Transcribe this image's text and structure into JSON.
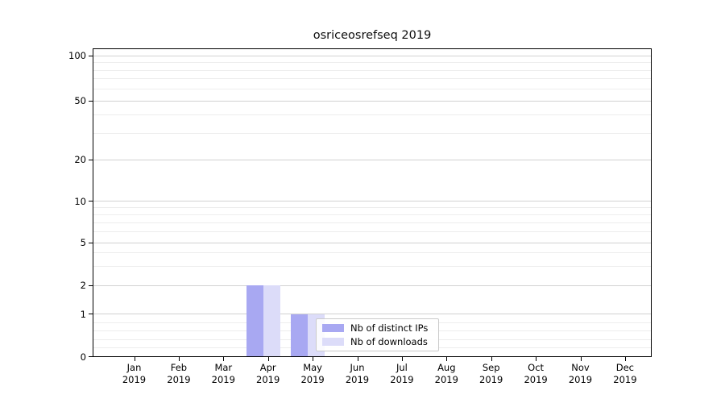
{
  "chart_data": {
    "type": "bar",
    "title": "osriceosrefseq 2019",
    "categories": [
      "Jan",
      "Feb",
      "Mar",
      "Apr",
      "May",
      "Jun",
      "Jul",
      "Aug",
      "Sep",
      "Oct",
      "Nov",
      "Dec"
    ],
    "x_year": "2019",
    "series": [
      {
        "name": "Nb of distinct IPs",
        "color": "#a8a8f2",
        "values": [
          0,
          0,
          0,
          2,
          1,
          0,
          0,
          0,
          0,
          0,
          0,
          0
        ]
      },
      {
        "name": "Nb of downloads",
        "color": "#dcdcf9",
        "values": [
          0,
          0,
          0,
          2,
          1,
          0,
          0,
          0,
          0,
          0,
          0,
          0
        ]
      }
    ],
    "y_ticks": [
      0,
      1,
      2,
      5,
      10,
      20,
      50,
      100
    ],
    "y_minor_ticks": [
      0.2,
      0.4,
      0.6,
      0.8,
      3,
      4,
      6,
      7,
      8,
      9,
      30,
      40,
      60,
      70,
      80,
      90
    ],
    "scale": "symlog",
    "ylim": [
      0,
      110
    ],
    "grid": "both",
    "legend_position": "lower-center",
    "colors": {
      "major_grid": "#d2d2d2",
      "minor_grid": "#ededed",
      "axis": "#000000",
      "background": "#ffffff"
    }
  }
}
